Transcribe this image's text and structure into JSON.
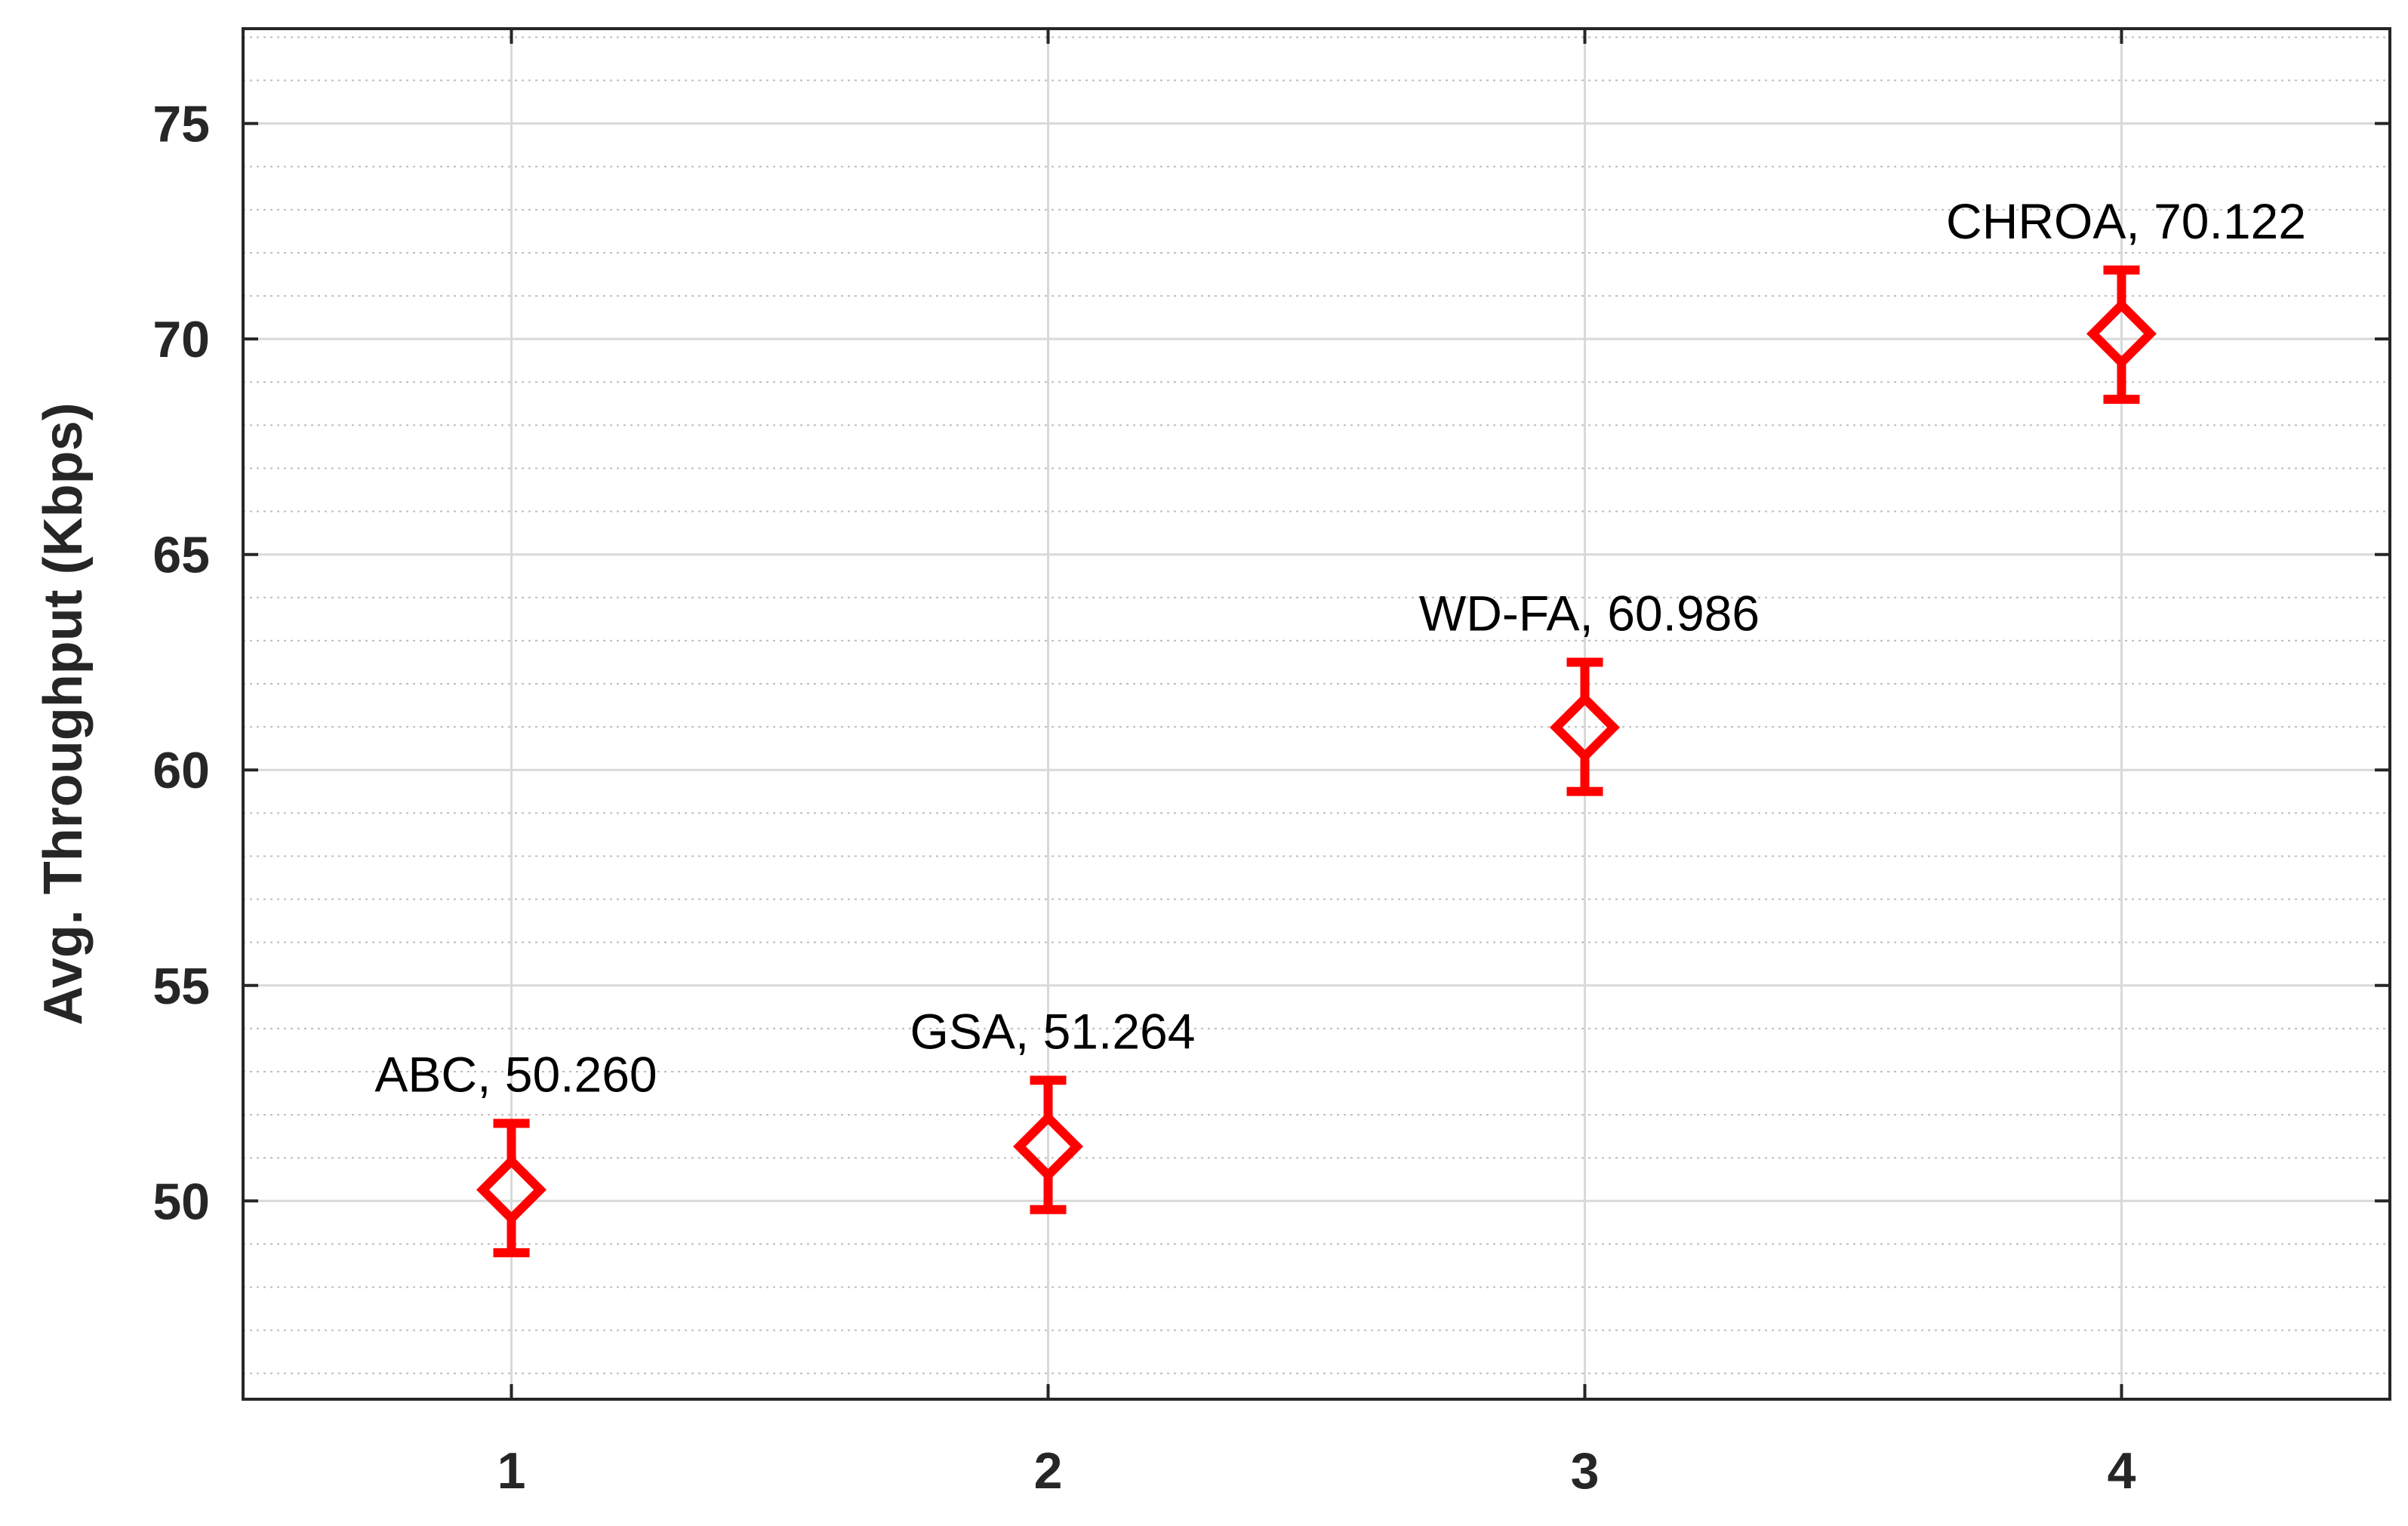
{
  "chart_data": {
    "type": "scatter",
    "title": "",
    "xlabel": "",
    "ylabel": "Avg. Throughput (Kbps)",
    "xlim": [
      0.5,
      4.5
    ],
    "ylim": [
      45.4,
      77.2
    ],
    "xticks": [
      "1",
      "2",
      "3",
      "4"
    ],
    "yticks": [
      "50",
      "55",
      "60",
      "65",
      "70",
      "75"
    ],
    "grid": true,
    "minor_grid": true,
    "marker": "diamond",
    "color": "#ff0000",
    "points": [
      {
        "x": 1,
        "y": 50.26,
        "err_low": 48.8,
        "err_high": 51.8,
        "label": "ABC, 50.260"
      },
      {
        "x": 2,
        "y": 51.264,
        "err_low": 49.8,
        "err_high": 52.8,
        "label": "GSA, 51.264"
      },
      {
        "x": 3,
        "y": 60.986,
        "err_low": 59.5,
        "err_high": 62.5,
        "label": "WD-FA, 60.986"
      },
      {
        "x": 4,
        "y": 70.122,
        "err_low": 68.6,
        "err_high": 71.6,
        "label": "CHROA, 70.122"
      }
    ]
  }
}
